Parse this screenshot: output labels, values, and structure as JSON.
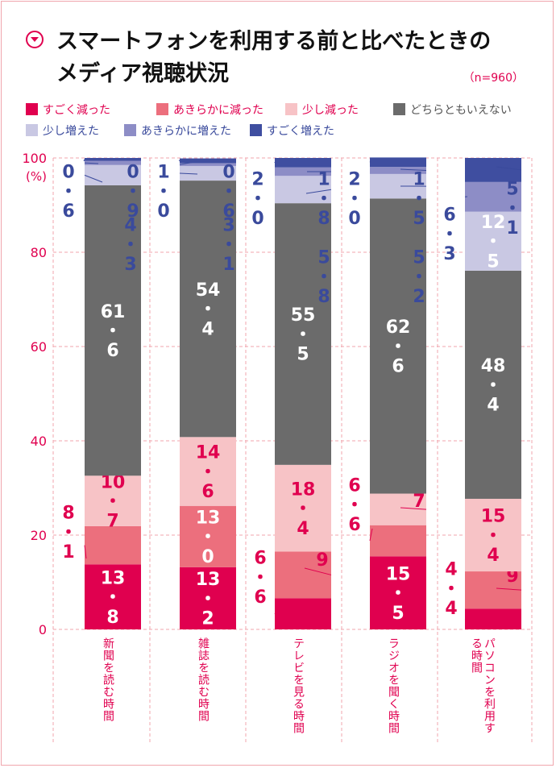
{
  "title": {
    "line1": "スマートフォンを利用する前と比べたときの",
    "line2": "メディア視聴状況"
  },
  "sample_note": "（n=960）",
  "colors": {
    "accent": "#e0004f",
    "grid": "#f0a6ad",
    "white_text": "#ffffff",
    "blue_text": "#3a4a9c"
  },
  "chart_data": {
    "type": "bar",
    "stacked": true,
    "orientation": "vertical",
    "ylim": [
      0,
      100
    ],
    "yticks": [
      0,
      20,
      40,
      60,
      80,
      100
    ],
    "ylabel": "(%)",
    "grid": true,
    "legend_position": "top",
    "categories": [
      "新聞を読む時間",
      "雑誌を読む時間",
      "テレビを見る時間",
      "ラジオを聞く時間",
      "パソコンを利用する時間"
    ],
    "series": [
      {
        "name": "すごく減った",
        "color": "#e0004f",
        "values": [
          13.8,
          13.2,
          6.6,
          15.5,
          4.4
        ],
        "labels": [
          "13・8",
          "13・2",
          "6・6",
          "15・5",
          "4・4"
        ]
      },
      {
        "name": "あきらかに減った",
        "color": "#ec6f7d",
        "values": [
          8.1,
          13.0,
          9.9,
          6.6,
          7.9
        ],
        "labels": [
          "8・1",
          "13・0",
          "9・9",
          "6・6",
          "7・9"
        ]
      },
      {
        "name": "少し減った",
        "color": "#f7c3c6",
        "values": [
          10.7,
          14.6,
          18.4,
          6.7,
          15.4
        ],
        "labels": [
          "10・7",
          "14・6",
          "18・4",
          "6・7",
          "15・4"
        ]
      },
      {
        "name": "どちらともいえない",
        "color": "#6b6b6b",
        "values": [
          61.6,
          54.4,
          55.5,
          62.6,
          48.4
        ],
        "labels": [
          "61・6",
          "54・4",
          "55・5",
          "62・6",
          "48・4"
        ]
      },
      {
        "name": "少し増えた",
        "color": "#c9c8e3",
        "values": [
          4.3,
          3.1,
          5.8,
          5.2,
          12.5
        ],
        "labels": [
          "4・3",
          "3・1",
          "5・8",
          "5・2",
          "12・5"
        ]
      },
      {
        "name": "あきらかに増えた",
        "color": "#8d8dc6",
        "values": [
          0.9,
          0.6,
          1.8,
          1.5,
          6.3
        ],
        "labels": [
          "0・9",
          "0・6",
          "1・8",
          "1・5",
          "6・3"
        ]
      },
      {
        "name": "すごく増えた",
        "color": "#3f4ea0",
        "values": [
          0.6,
          1.0,
          2.0,
          2.0,
          5.1
        ],
        "labels": [
          "0・6",
          "1・0",
          "2・0",
          "2・0",
          "5・1"
        ]
      }
    ]
  }
}
